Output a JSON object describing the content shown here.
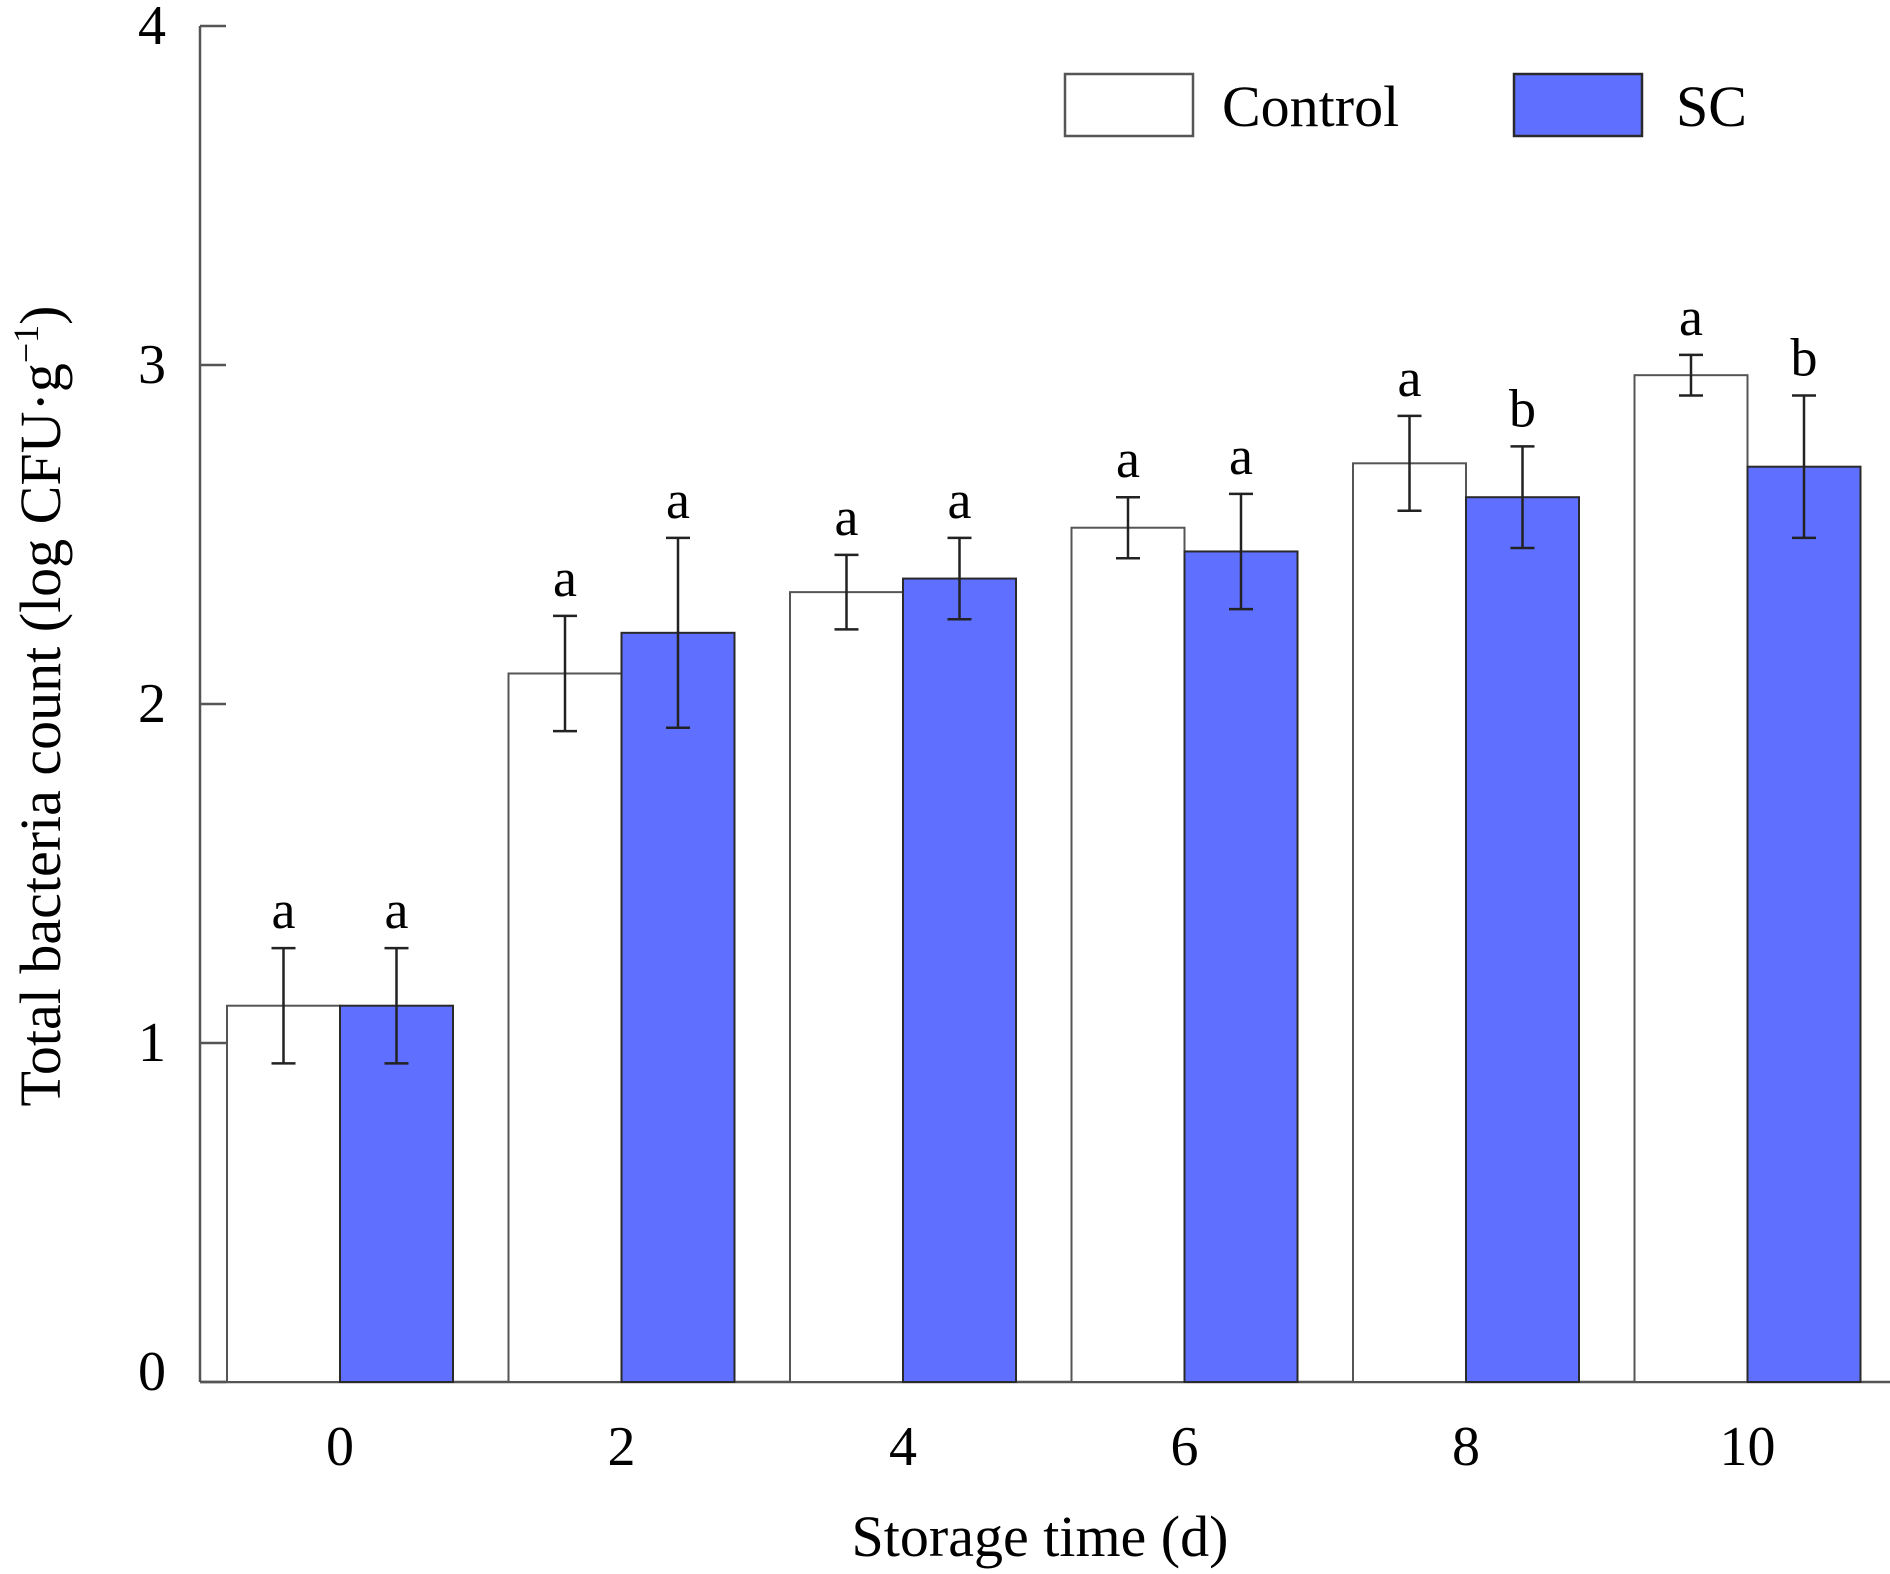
{
  "chart_data": {
    "type": "bar",
    "title": "",
    "xlabel": "Storage time (d)",
    "ylabel": "Total bacteria count (log CFU·g",
    "ylabel_superscript": "−1",
    "ylabel_close": ")",
    "categories": [
      "0",
      "2",
      "4",
      "6",
      "8",
      "10"
    ],
    "ylim": [
      0,
      4
    ],
    "yticks": [
      "0",
      "1",
      "2",
      "3",
      "4"
    ],
    "legend_position": "top-right",
    "series": [
      {
        "name": "Control",
        "color": "#ffffff",
        "values": [
          1.11,
          2.09,
          2.33,
          2.52,
          2.71,
          2.97
        ],
        "errors": [
          0.17,
          0.17,
          0.11,
          0.09,
          0.14,
          0.06
        ],
        "letters": [
          "a",
          "a",
          "a",
          "a",
          "a",
          "a"
        ]
      },
      {
        "name": "SC",
        "color": "#5f6fff",
        "values": [
          1.11,
          2.21,
          2.37,
          2.45,
          2.61,
          2.7
        ],
        "errors": [
          0.17,
          0.28,
          0.12,
          0.17,
          0.15,
          0.21
        ],
        "letters": [
          "a",
          "a",
          "a",
          "a",
          "b",
          "b"
        ]
      }
    ]
  }
}
